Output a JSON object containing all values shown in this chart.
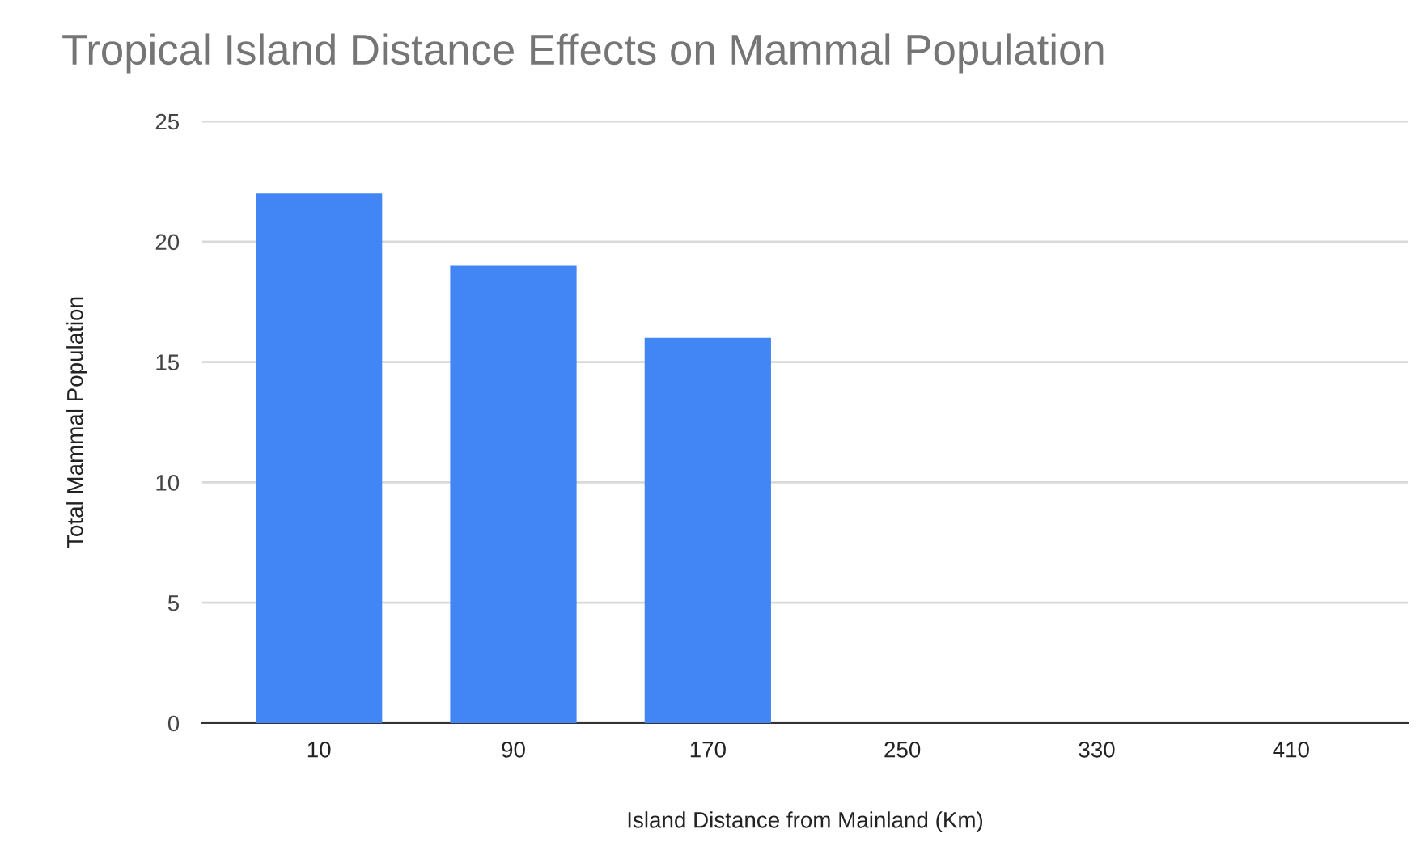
{
  "chart_data": {
    "type": "bar",
    "title": "Tropical Island Distance Effects on Mammal Population",
    "xlabel": "Island Distance from Mainland (Km)",
    "ylabel": "Total Mammal Population",
    "categories": [
      "10",
      "90",
      "170",
      "250",
      "330",
      "410"
    ],
    "values": [
      22,
      19,
      16,
      null,
      null,
      null
    ],
    "color": "#4285f4",
    "ylim": [
      0,
      25
    ],
    "yticks": [
      0,
      5,
      10,
      15,
      20,
      25
    ],
    "grid": "y",
    "legend": false
  }
}
